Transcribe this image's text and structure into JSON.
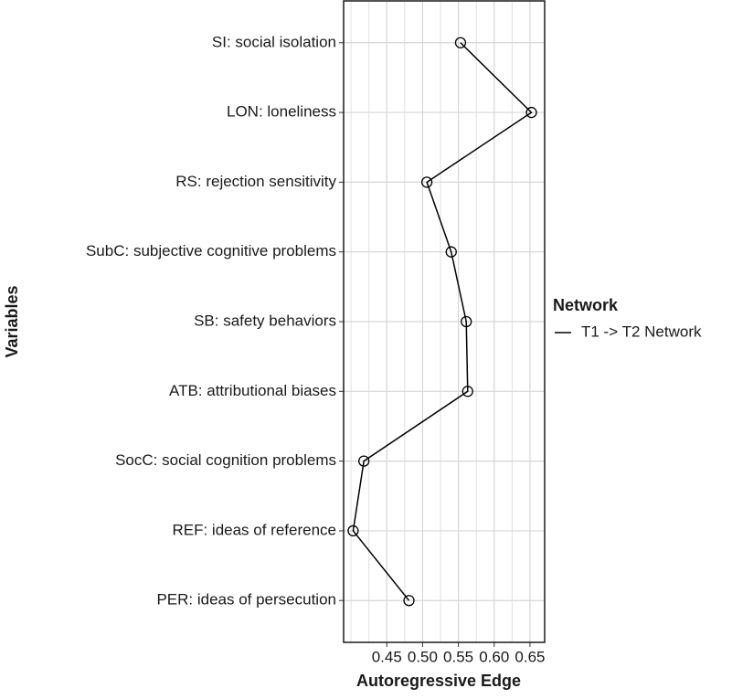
{
  "chart_data": {
    "type": "line",
    "categories": [
      "SI: social isolation",
      "LON: loneliness",
      "RS: rejection sensitivity",
      "SubC: subjective cognitive problems",
      "SB: safety behaviors",
      "ATB: attributional biases",
      "SocC: social cognition problems",
      "REF: ideas of reference",
      "PER: ideas of persecution"
    ],
    "series": [
      {
        "name": "T1 -> T2 Network",
        "color": "#000000",
        "values": [
          0.553,
          0.652,
          0.506,
          0.54,
          0.561,
          0.563,
          0.418,
          0.403,
          0.481
        ]
      }
    ],
    "xlim": [
      0.3897,
      0.6705
    ],
    "xticks": [
      0.45,
      {
        "value": 0.5,
        "label": "0.50"
      },
      0.55,
      {
        "value": 0.6,
        "label": "0.60"
      },
      0.65
    ],
    "x_minor_grid": [
      0.4,
      0.425,
      0.475,
      0.525,
      0.575,
      0.625
    ],
    "xlabel": "Autoregressive Edge",
    "ylabel": "Variables",
    "legend_title": "Network",
    "legend_position": "right",
    "grid": true
  }
}
